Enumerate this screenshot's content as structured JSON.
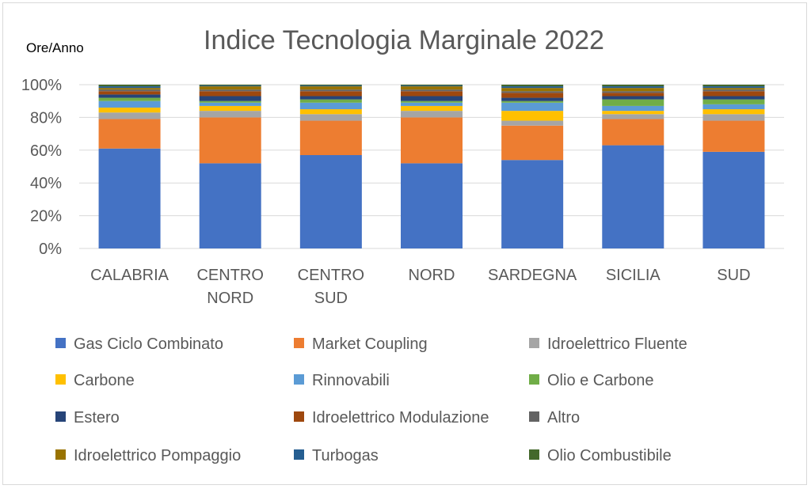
{
  "chart_data": {
    "type": "bar",
    "stacked": "percent",
    "title": "Indice Tecnologia Marginale 2022",
    "ylabel": "Ore/Anno",
    "xlabel": "",
    "ylim": [
      0,
      100
    ],
    "yticks": [
      "0%",
      "20%",
      "40%",
      "60%",
      "80%",
      "100%"
    ],
    "grid": true,
    "legend_position": "bottom",
    "categories": [
      [
        "CALABRIA"
      ],
      [
        "CENTRO",
        "NORD"
      ],
      [
        "CENTRO",
        "SUD"
      ],
      [
        "NORD"
      ],
      [
        "SARDEGNA"
      ],
      [
        "SICILIA"
      ],
      [
        "SUD"
      ]
    ],
    "series": [
      {
        "name": "Gas Ciclo Combinato",
        "color": "#4472C4",
        "values": [
          61,
          52,
          57,
          52,
          54,
          63,
          59
        ]
      },
      {
        "name": "Market Coupling",
        "color": "#ED7D31",
        "values": [
          18,
          28,
          21,
          28,
          21,
          16,
          19
        ]
      },
      {
        "name": "Idroelettrico Fluente",
        "color": "#A5A5A5",
        "values": [
          4,
          4,
          4,
          4,
          3,
          3,
          4
        ]
      },
      {
        "name": "Carbone",
        "color": "#FFC000",
        "values": [
          3,
          3,
          3,
          3,
          6,
          2,
          3
        ]
      },
      {
        "name": "Rinnovabili",
        "color": "#5B9BD5",
        "values": [
          4,
          2,
          4,
          2,
          5,
          3,
          3
        ]
      },
      {
        "name": "Olio e Carbone",
        "color": "#70AD47",
        "values": [
          2,
          1,
          2,
          1,
          1,
          4,
          3
        ]
      },
      {
        "name": "Estero",
        "color": "#264478",
        "values": [
          2,
          3,
          2,
          3,
          2,
          2,
          2
        ]
      },
      {
        "name": "Idroelettrico Modulazione",
        "color": "#9E480E",
        "values": [
          2,
          3,
          3,
          3,
          3,
          2,
          3
        ]
      },
      {
        "name": "Altro",
        "color": "#636363",
        "values": [
          1,
          1,
          1,
          1,
          1,
          1,
          1
        ]
      },
      {
        "name": "Idroelettrico Pompaggio",
        "color": "#997300",
        "values": [
          1,
          2,
          2,
          2,
          2,
          2,
          1
        ]
      },
      {
        "name": "Turbogas",
        "color": "#255E91",
        "values": [
          1,
          0.5,
          0.5,
          0.5,
          1,
          1,
          1
        ]
      },
      {
        "name": "Olio Combustibile",
        "color": "#43682B",
        "values": [
          1,
          0.5,
          0.5,
          0.5,
          1,
          1,
          1
        ]
      }
    ]
  }
}
